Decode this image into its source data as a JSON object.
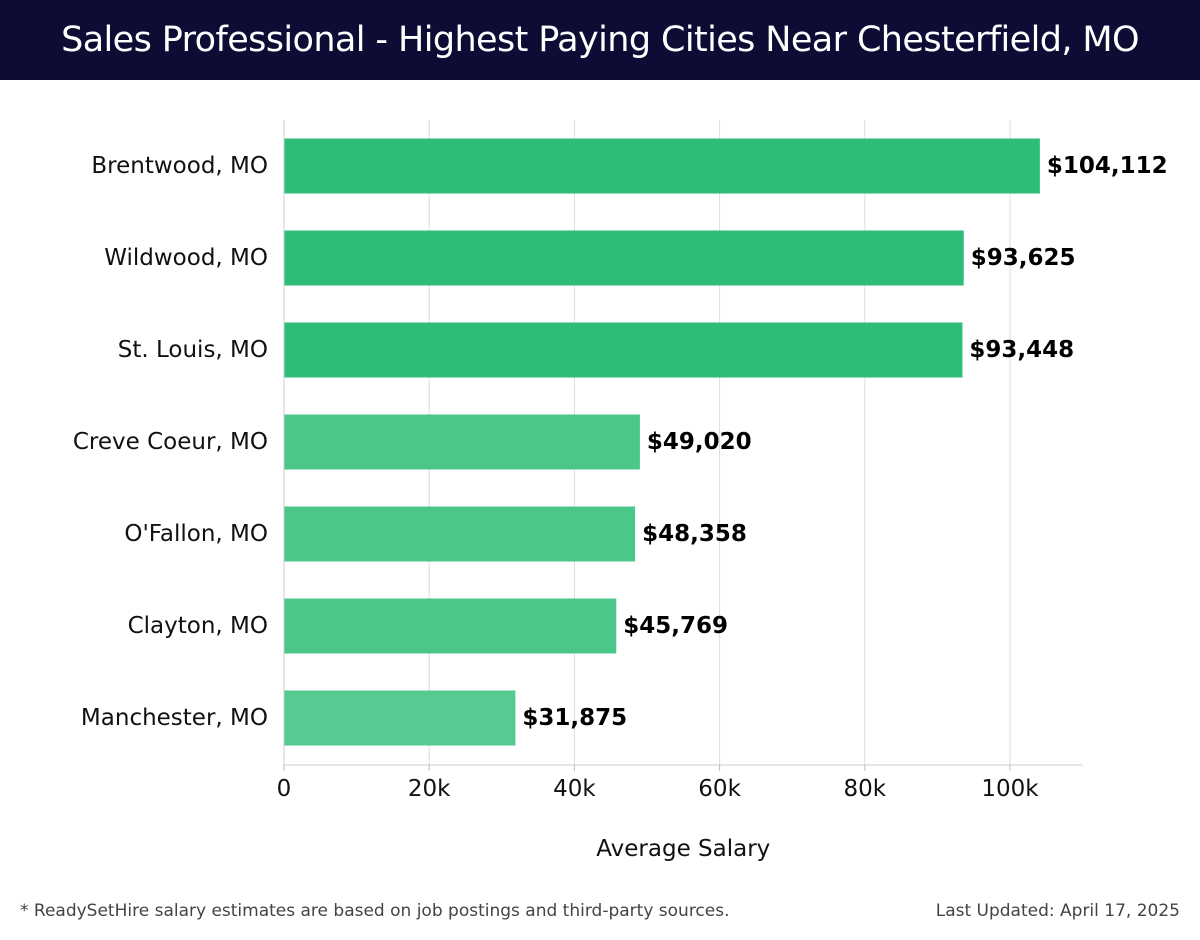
{
  "header": {
    "title": "Sales Professional - Highest Paying Cities Near Chesterfield, MO"
  },
  "chart_data": {
    "type": "bar",
    "orientation": "horizontal",
    "title": "Sales Professional - Highest Paying Cities Near Chesterfield, MO",
    "categories": [
      "Brentwood, MO",
      "Wildwood, MO",
      "St. Louis, MO",
      "Creve Coeur, MO",
      "O'Fallon, MO",
      "Clayton, MO",
      "Manchester, MO"
    ],
    "values": [
      104112,
      93625,
      93448,
      49020,
      48358,
      45769,
      31875
    ],
    "value_labels": [
      "$104,112",
      "$93,625",
      "$93,448",
      "$49,020",
      "$48,358",
      "$45,769",
      "$31,875"
    ],
    "bar_colors": [
      "#2ebd78",
      "#2ebd78",
      "#2ebd78",
      "#4cc78a",
      "#4cc78a",
      "#4cc78a",
      "#55ca91"
    ],
    "xlabel": "Average Salary",
    "ylabel": "",
    "xlim": [
      0,
      110000
    ],
    "xticks": [
      0,
      20000,
      40000,
      60000,
      80000,
      100000
    ],
    "xtick_labels": [
      "0",
      "20k",
      "40k",
      "60k",
      "80k",
      "100k"
    ],
    "grid": true,
    "legend": "none"
  },
  "footer": {
    "note": "* ReadySetHire salary estimates are based on job postings and third-party sources.",
    "updated": "Last Updated: April 17, 2025"
  },
  "colors": {
    "header_bg": "#0c0c35",
    "gridline": "#dddddd",
    "text": "#111111"
  }
}
